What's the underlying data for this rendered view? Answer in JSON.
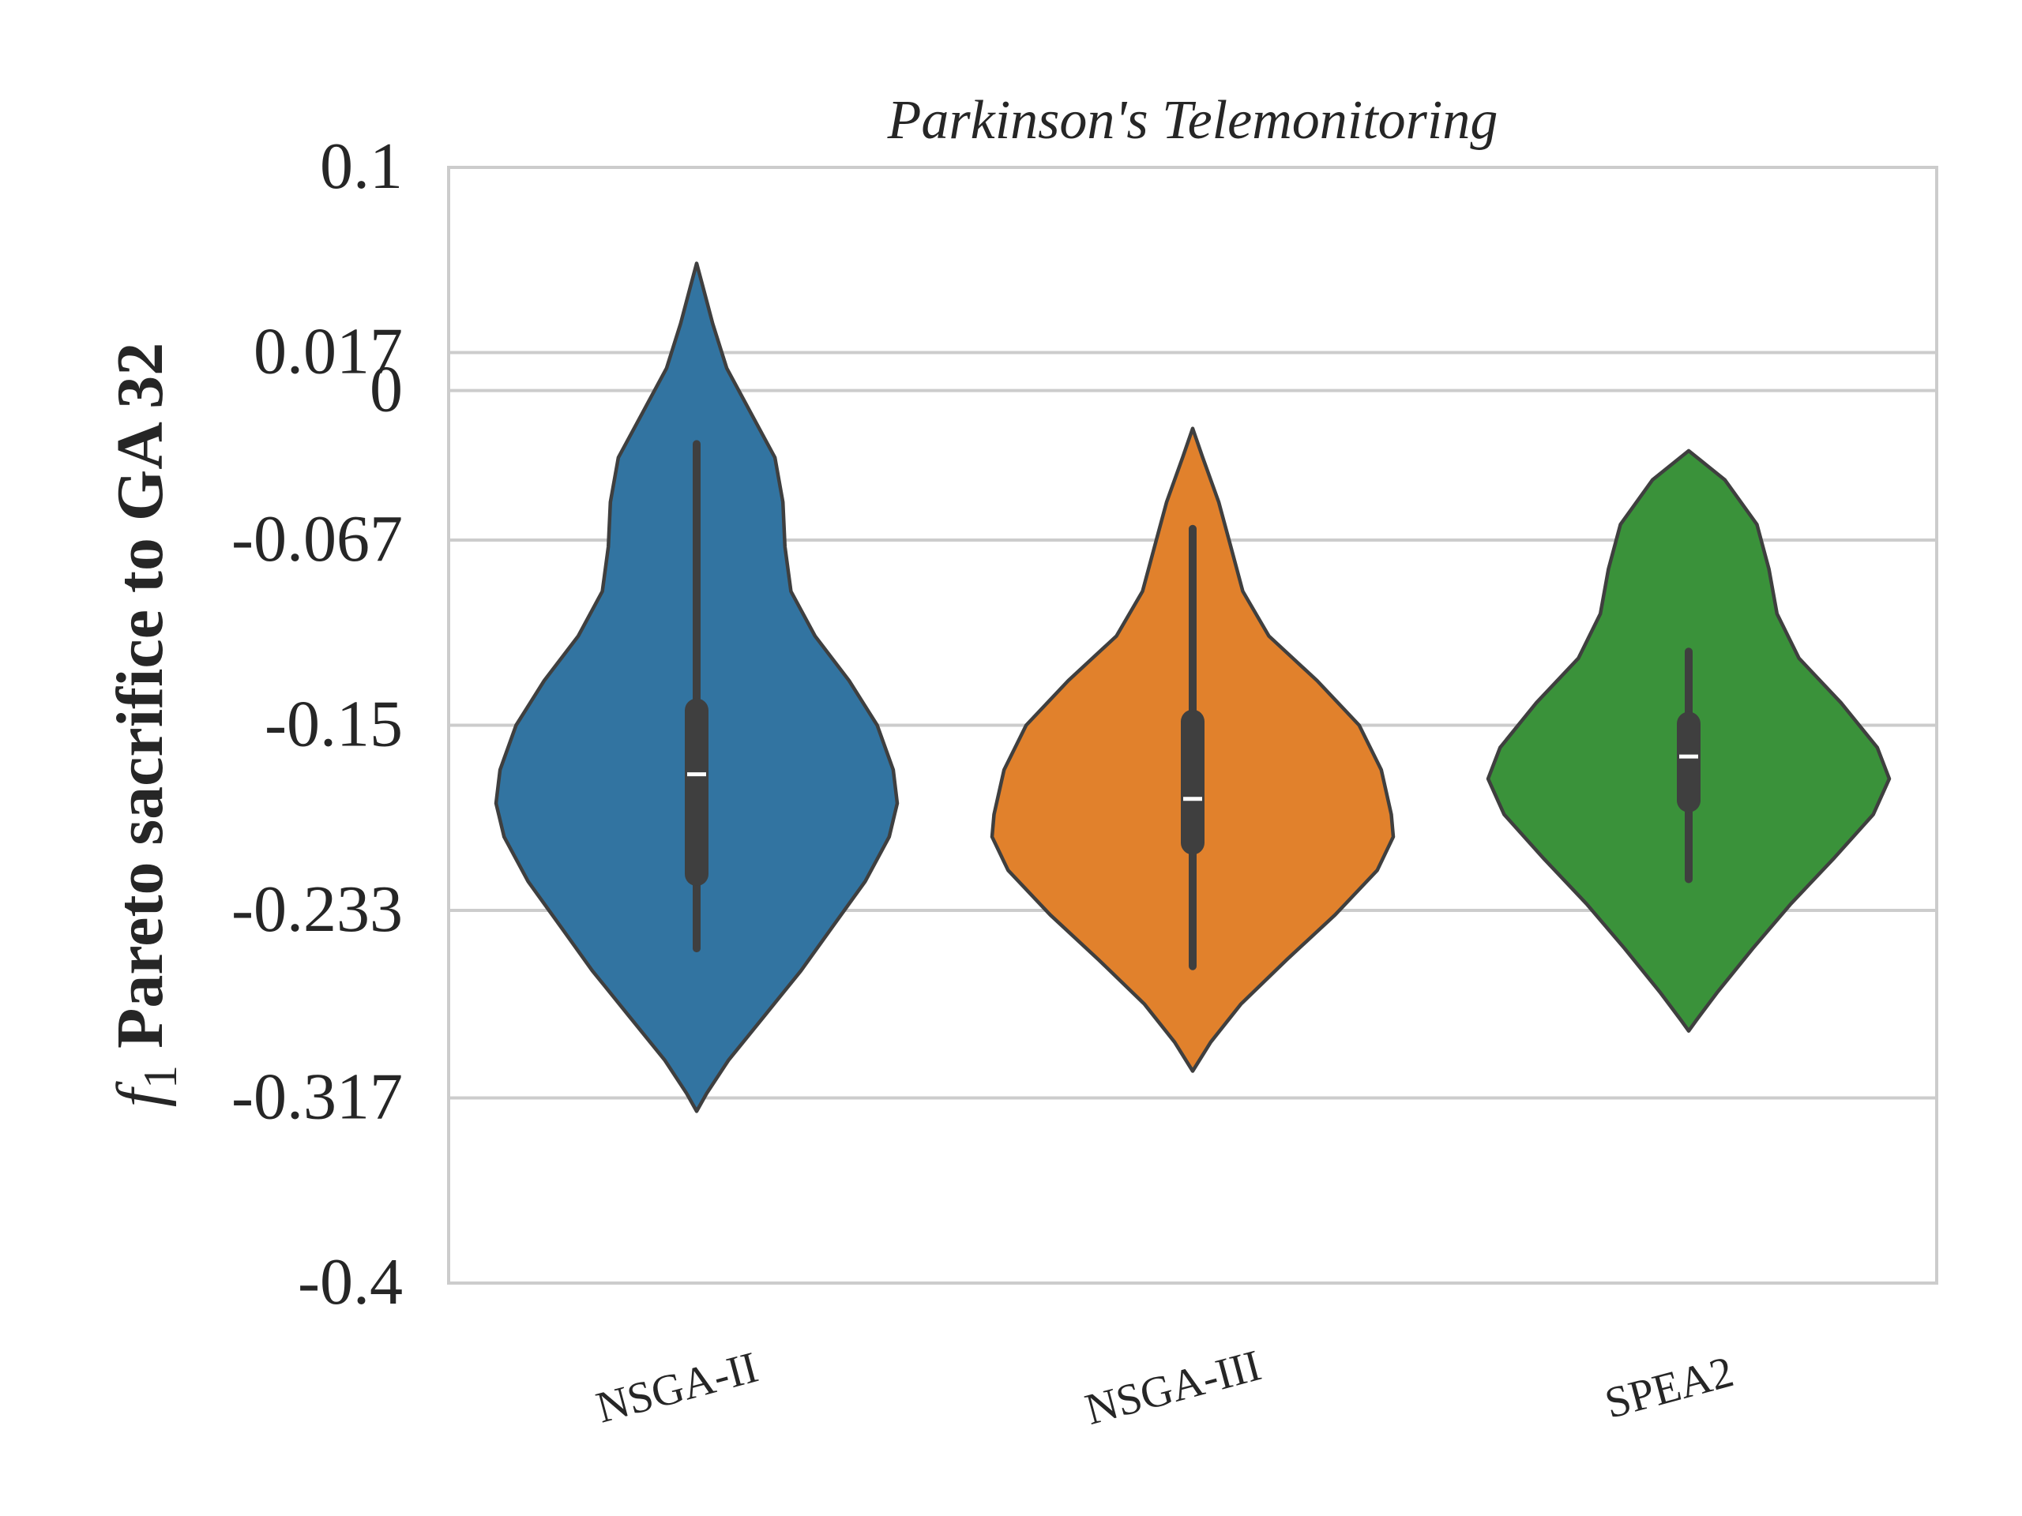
{
  "chart_data": {
    "type": "violin",
    "title": "Parkinson's Telemonitoring",
    "ylabel_italic": "f",
    "ylabel_sub": "1",
    "ylabel_rest": " Pareto sacrifice to GA 32",
    "xlabel": "",
    "ylim": [
      -0.4,
      0.1
    ],
    "yticks": [
      {
        "value": 0.1,
        "label": "0.1"
      },
      {
        "value": 0.017,
        "label": "0.017"
      },
      {
        "value": 0,
        "label": "0"
      },
      {
        "value": -0.067,
        "label": "-0.067"
      },
      {
        "value": -0.15,
        "label": "-0.15"
      },
      {
        "value": -0.233,
        "label": "-0.233"
      },
      {
        "value": -0.317,
        "label": "-0.317"
      },
      {
        "value": -0.4,
        "label": "-0.4"
      }
    ],
    "grid": true,
    "categories": [
      "NSGA-II",
      "NSGA-III",
      "SPEA2"
    ],
    "series": [
      {
        "name": "NSGA-II",
        "color": "#3274a1",
        "kde_max": 0.057,
        "kde_min": -0.323,
        "whisker_high": -0.024,
        "whisker_low": -0.25,
        "q3": -0.138,
        "q1": -0.222,
        "median": -0.172,
        "profile": [
          [
            0.057,
            0.0
          ],
          [
            0.047,
            0.03
          ],
          [
            0.03,
            0.08
          ],
          [
            0.01,
            0.15
          ],
          [
            -0.01,
            0.27
          ],
          [
            -0.03,
            0.39
          ],
          [
            -0.05,
            0.43
          ],
          [
            -0.07,
            0.44
          ],
          [
            -0.09,
            0.47
          ],
          [
            -0.11,
            0.59
          ],
          [
            -0.13,
            0.76
          ],
          [
            -0.15,
            0.9
          ],
          [
            -0.17,
            0.98
          ],
          [
            -0.185,
            1.0
          ],
          [
            -0.2,
            0.96
          ],
          [
            -0.22,
            0.84
          ],
          [
            -0.24,
            0.68
          ],
          [
            -0.26,
            0.52
          ],
          [
            -0.28,
            0.34
          ],
          [
            -0.3,
            0.16
          ],
          [
            -0.315,
            0.05
          ],
          [
            -0.323,
            0.0
          ]
        ]
      },
      {
        "name": "NSGA-III",
        "color": "#e1812c",
        "kde_max": -0.017,
        "kde_min": -0.305,
        "whisker_high": -0.062,
        "whisker_low": -0.258,
        "q3": -0.143,
        "q1": -0.208,
        "median": -0.183,
        "profile": [
          [
            -0.017,
            0.0
          ],
          [
            -0.03,
            0.05
          ],
          [
            -0.05,
            0.13
          ],
          [
            -0.07,
            0.19
          ],
          [
            -0.09,
            0.25
          ],
          [
            -0.11,
            0.38
          ],
          [
            -0.13,
            0.62
          ],
          [
            -0.15,
            0.83
          ],
          [
            -0.17,
            0.94
          ],
          [
            -0.19,
            0.99
          ],
          [
            -0.2,
            1.0
          ],
          [
            -0.215,
            0.92
          ],
          [
            -0.235,
            0.71
          ],
          [
            -0.255,
            0.47
          ],
          [
            -0.275,
            0.24
          ],
          [
            -0.292,
            0.09
          ],
          [
            -0.305,
            0.0
          ]
        ]
      },
      {
        "name": "SPEA2",
        "color": "#3a923a",
        "kde_max": -0.027,
        "kde_min": -0.287,
        "whisker_high": -0.117,
        "whisker_low": -0.219,
        "q3": -0.144,
        "q1": -0.189,
        "median": -0.164,
        "profile": [
          [
            -0.027,
            0.0
          ],
          [
            -0.04,
            0.18
          ],
          [
            -0.06,
            0.34
          ],
          [
            -0.08,
            0.4
          ],
          [
            -0.1,
            0.44
          ],
          [
            -0.12,
            0.55
          ],
          [
            -0.14,
            0.76
          ],
          [
            -0.16,
            0.94
          ],
          [
            -0.174,
            1.0
          ],
          [
            -0.19,
            0.92
          ],
          [
            -0.21,
            0.72
          ],
          [
            -0.23,
            0.51
          ],
          [
            -0.25,
            0.32
          ],
          [
            -0.27,
            0.14
          ],
          [
            -0.282,
            0.04
          ],
          [
            -0.287,
            0.0
          ]
        ]
      }
    ]
  }
}
